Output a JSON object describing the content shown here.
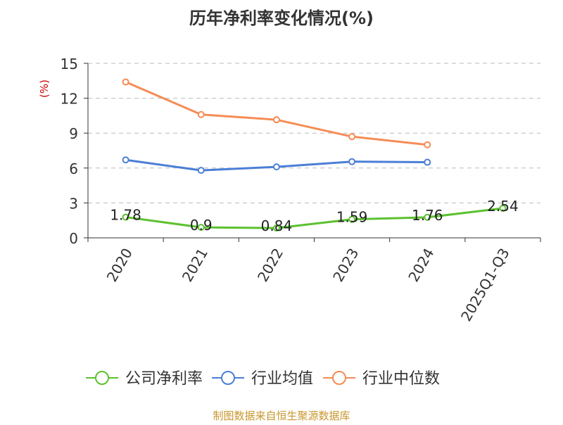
{
  "chart_data": {
    "type": "line",
    "title": "历年净利率变化情况(%)",
    "ylabel": "(%)",
    "categories": [
      "2020",
      "2021",
      "2022",
      "2023",
      "2024",
      "2025Q1-Q3"
    ],
    "ylim": [
      0,
      15
    ],
    "yticks": [
      0,
      3,
      6,
      9,
      12,
      15
    ],
    "grid": true,
    "legend_position": "bottom",
    "series": [
      {
        "name": "公司净利率",
        "color": "#5cc12f",
        "values": [
          1.78,
          0.9,
          0.84,
          1.59,
          1.76,
          2.54
        ],
        "show_labels": true
      },
      {
        "name": "行业均值",
        "color": "#4b7fd6",
        "values": [
          6.7,
          5.8,
          6.1,
          6.55,
          6.5,
          null
        ],
        "show_labels": false
      },
      {
        "name": "行业中位数",
        "color": "#f58c55",
        "values": [
          13.4,
          10.6,
          10.15,
          8.7,
          8.0,
          null
        ],
        "show_labels": false
      }
    ],
    "data_labels": [
      "1.78",
      "0.9",
      "0.84",
      "1.59",
      "1.76",
      "2.54"
    ]
  },
  "source": "制图数据来自恒生聚源数据库"
}
